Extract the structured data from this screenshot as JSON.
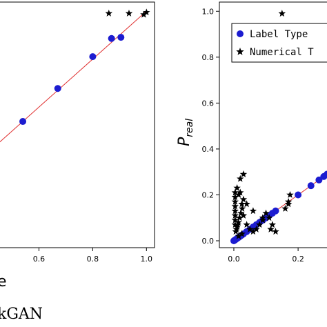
{
  "chart_data": [
    {
      "type": "scatter",
      "xlim": [
        0.45,
        1.03
      ],
      "ylim": [
        -0.04,
        1.04
      ],
      "x_ticks": [
        "0.6",
        "0.8",
        "1.0"
      ],
      "x_tick_values": [
        0.6,
        0.8,
        1.0
      ],
      "y_ticks": [],
      "xlabel_fragment": "e",
      "caption_fragment": "kGAN",
      "grid": false,
      "fit_line": {
        "from": [
          0.45,
          0.42
        ],
        "to": [
          1.0,
          1.0
        ],
        "color": "#e03030"
      },
      "series": [
        {
          "marker": "circle",
          "color": "#1c1cd0",
          "x": [
            0.54,
            0.67,
            0.8,
            0.87,
            0.905
          ],
          "y": [
            0.515,
            0.66,
            0.8,
            0.88,
            0.885
          ]
        },
        {
          "marker": "star",
          "color": "#000000",
          "x": [
            0.86,
            0.935,
            0.99,
            1.0
          ],
          "y": [
            0.99,
            0.99,
            0.985,
            0.995
          ]
        }
      ]
    },
    {
      "type": "scatter",
      "xlim": [
        -0.045,
        0.32
      ],
      "ylim": [
        -0.03,
        1.04
      ],
      "x_ticks": [
        "0.0",
        "0.2"
      ],
      "x_tick_values": [
        0.0,
        0.2
      ],
      "y_ticks": [
        "0.0",
        "0.2",
        "0.4",
        "0.6",
        "0.8",
        "1.0"
      ],
      "y_tick_values": [
        0.0,
        0.2,
        0.4,
        0.6,
        0.8,
        1.0
      ],
      "ylabel_main": "P",
      "ylabel_sub": "real",
      "grid": false,
      "legend": {
        "position": "top-right",
        "entries": [
          "Label Type",
          "Numerical T"
        ]
      },
      "fit_line": {
        "from": [
          0.0,
          0.0
        ],
        "to": [
          0.32,
          0.32
        ],
        "color": "#e03030"
      },
      "series": [
        {
          "name": "Label Type",
          "marker": "circle",
          "color": "#1c1cd0",
          "x": [
            0.0,
            0.004,
            0.008,
            0.012,
            0.016,
            0.02,
            0.025,
            0.03,
            0.04,
            0.05,
            0.06,
            0.07,
            0.08,
            0.09,
            0.1,
            0.11,
            0.12,
            0.13,
            0.2,
            0.24,
            0.265,
            0.28,
            0.29,
            0.3,
            0.31
          ],
          "y": [
            0.0,
            0.004,
            0.008,
            0.012,
            0.016,
            0.02,
            0.025,
            0.03,
            0.04,
            0.05,
            0.06,
            0.07,
            0.08,
            0.09,
            0.1,
            0.11,
            0.12,
            0.13,
            0.2,
            0.24,
            0.265,
            0.28,
            0.29,
            0.3,
            0.31
          ]
        },
        {
          "name": "Numerical T",
          "marker": "star",
          "color": "#000000",
          "x": [
            0.15,
            0.004,
            0.004,
            0.004,
            0.004,
            0.004,
            0.004,
            0.004,
            0.004,
            0.006,
            0.008,
            0.01,
            0.012,
            0.014,
            0.018,
            0.022,
            0.026,
            0.03,
            0.01,
            0.02,
            0.03,
            0.015,
            0.025,
            0.04,
            0.05,
            0.06,
            0.07,
            0.08,
            0.09,
            0.1,
            0.11,
            0.12,
            0.13,
            0.09,
            0.06,
            0.04,
            0.03,
            0.02,
            0.115,
            0.16,
            0.17,
            0.175,
            0.17,
            0.015,
            0.025
          ],
          "y": [
            0.99,
            0.07,
            0.09,
            0.11,
            0.13,
            0.15,
            0.17,
            0.19,
            0.21,
            0.04,
            0.05,
            0.06,
            0.07,
            0.08,
            0.1,
            0.12,
            0.14,
            0.11,
            0.23,
            0.27,
            0.29,
            0.2,
            0.16,
            0.07,
            0.05,
            0.04,
            0.05,
            0.07,
            0.09,
            0.12,
            0.1,
            0.07,
            0.04,
            0.1,
            0.13,
            0.16,
            0.18,
            0.21,
            0.05,
            0.14,
            0.17,
            0.2,
            0.16,
            0.02,
            0.03
          ]
        }
      ]
    }
  ]
}
